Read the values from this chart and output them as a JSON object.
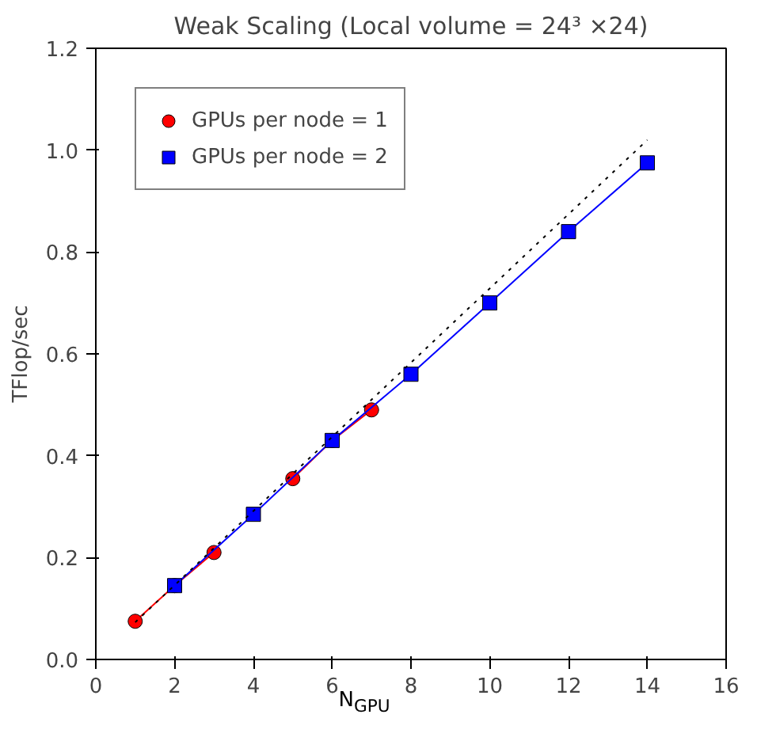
{
  "chart_data": {
    "type": "line",
    "title": "Weak Scaling (Local volume = 24³ ×24)",
    "xlabel": "N$_{GPU}$",
    "ylabel": "TFlop/sec",
    "xlim": [
      0,
      16
    ],
    "xticks": [
      0,
      2,
      4,
      6,
      8,
      10,
      12,
      14,
      16
    ],
    "ylim": [
      0,
      1.2
    ],
    "yticks": [
      {
        "value": 0,
        "label": "0.0"
      },
      {
        "value": 0.2,
        "label": "0.2"
      },
      {
        "value": 0.4,
        "label": "0.4"
      },
      {
        "value": 0.6,
        "label": "0.6"
      },
      {
        "value": 0.8,
        "label": "0.8"
      },
      {
        "value": 1.0,
        "label": "1.0"
      },
      {
        "value": 1.2,
        "label": "1.2"
      }
    ],
    "grid": false,
    "legend": "top left",
    "series": [
      {
        "name": "GPUs per node = 1",
        "color": "#ff0000",
        "marker": "circle",
        "x": [
          1,
          2,
          3,
          4,
          5,
          6,
          7
        ],
        "values": [
          0.075,
          0.145,
          0.21,
          null,
          0.355,
          0.43,
          0.49
        ]
      },
      {
        "name": "GPUs per node = 2",
        "color": "#0000ff",
        "marker": "square",
        "x": [
          2,
          4,
          6,
          8,
          10,
          12,
          14
        ],
        "values": [
          0.145,
          0.285,
          0.43,
          0.56,
          0.7,
          0.84,
          0.975
        ]
      },
      {
        "color": "#000000",
        "marker": "none",
        "line_style": "dotted",
        "x": [
          1,
          14
        ],
        "values": [
          0.073,
          1.02
        ]
      }
    ]
  }
}
